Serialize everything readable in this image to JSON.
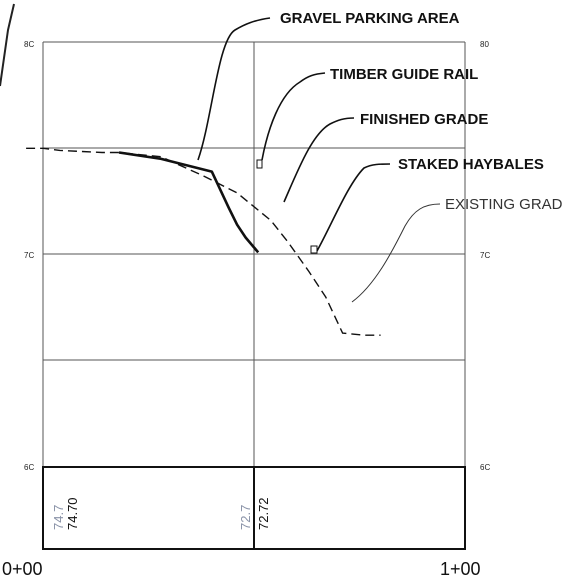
{
  "profile": {
    "elevation_labels": {
      "top": "8C",
      "top_right": "80",
      "mid_left": "7C",
      "mid_right": "7C",
      "bottom_left": "6C",
      "bottom_right": "6C"
    },
    "stations": {
      "start": "0+00",
      "end": "1+00"
    },
    "grade_values": [
      {
        "existing": "74.7",
        "finished": "74.70"
      },
      {
        "existing": "72.7",
        "finished": "72.72"
      }
    ],
    "callouts": {
      "gravel_parking_area": "GRAVEL PARKING AREA",
      "timber_guide_rail": "TIMBER GUIDE RAIL",
      "finished_grade": "FINISHED GRADE",
      "staked_haybales": "STAKED HAYBALES",
      "existing_grade": "EXISTING GRADE"
    }
  },
  "chart_data": {
    "type": "line",
    "xlim": [
      0,
      100
    ],
    "ylim": [
      60,
      80
    ],
    "series": [
      {
        "line_style": "dashed",
        "x": [
          -4,
          0,
          4,
          14,
          18,
          28,
          38,
          46,
          54,
          58,
          63,
          67,
          71,
          76,
          80
        ],
        "y": [
          75.0,
          75.0,
          74.9,
          74.8,
          74.8,
          74.6,
          73.7,
          72.9,
          71.6,
          70.6,
          69.2,
          68.0,
          66.3,
          66.2,
          66.2
        ]
      },
      {
        "line_style": "solid",
        "x": [
          18,
          28,
          40,
          44,
          46,
          48,
          51
        ],
        "y": [
          74.8,
          74.5,
          73.9,
          72.2,
          71.4,
          70.8,
          70.1
        ]
      }
    ]
  }
}
